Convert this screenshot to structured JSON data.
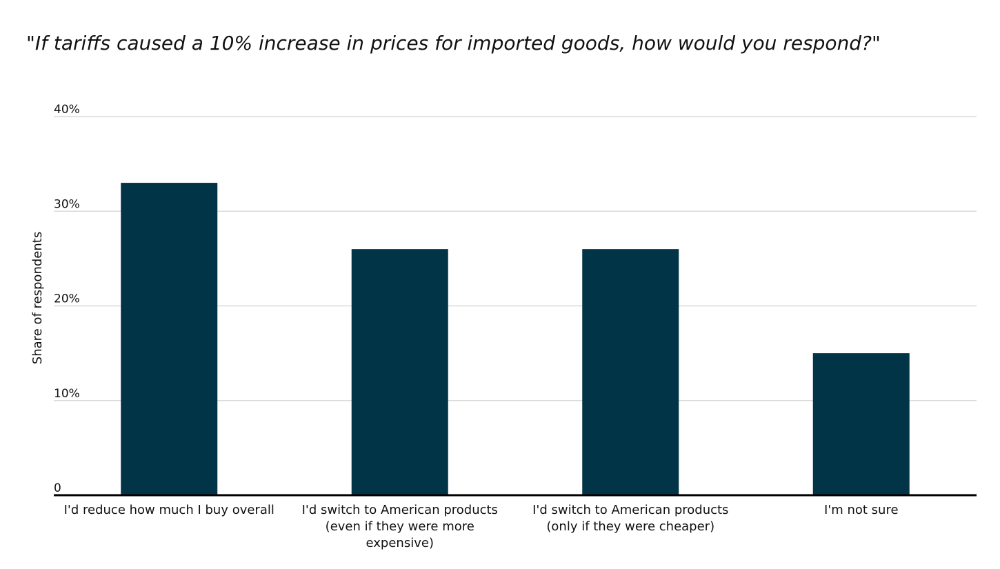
{
  "chart_data": {
    "type": "bar",
    "title": "\"If tariffs caused a 10% increase in prices for imported goods, how would you respond?\"",
    "xlabel": "",
    "ylabel": "Share of respondents",
    "categories": [
      [
        "I'd reduce how much I buy overall"
      ],
      [
        "I'd switch to American products",
        "(even if they were more",
        "expensive)"
      ],
      [
        "I'd switch to American products",
        "(only if they were cheaper)"
      ],
      [
        "I'm not sure"
      ]
    ],
    "values": [
      33,
      26,
      26,
      15
    ],
    "ylim": [
      0,
      40
    ],
    "yticks": [
      {
        "value": 0,
        "label": "0"
      },
      {
        "value": 10,
        "label": "10%"
      },
      {
        "value": 20,
        "label": "20%"
      },
      {
        "value": 30,
        "label": "30%"
      },
      {
        "value": 40,
        "label": "40%"
      }
    ],
    "grid": true,
    "legend": "none",
    "colors": {
      "bar": "#023447",
      "grid": "#d9d9d9",
      "axis": "#000000"
    }
  }
}
